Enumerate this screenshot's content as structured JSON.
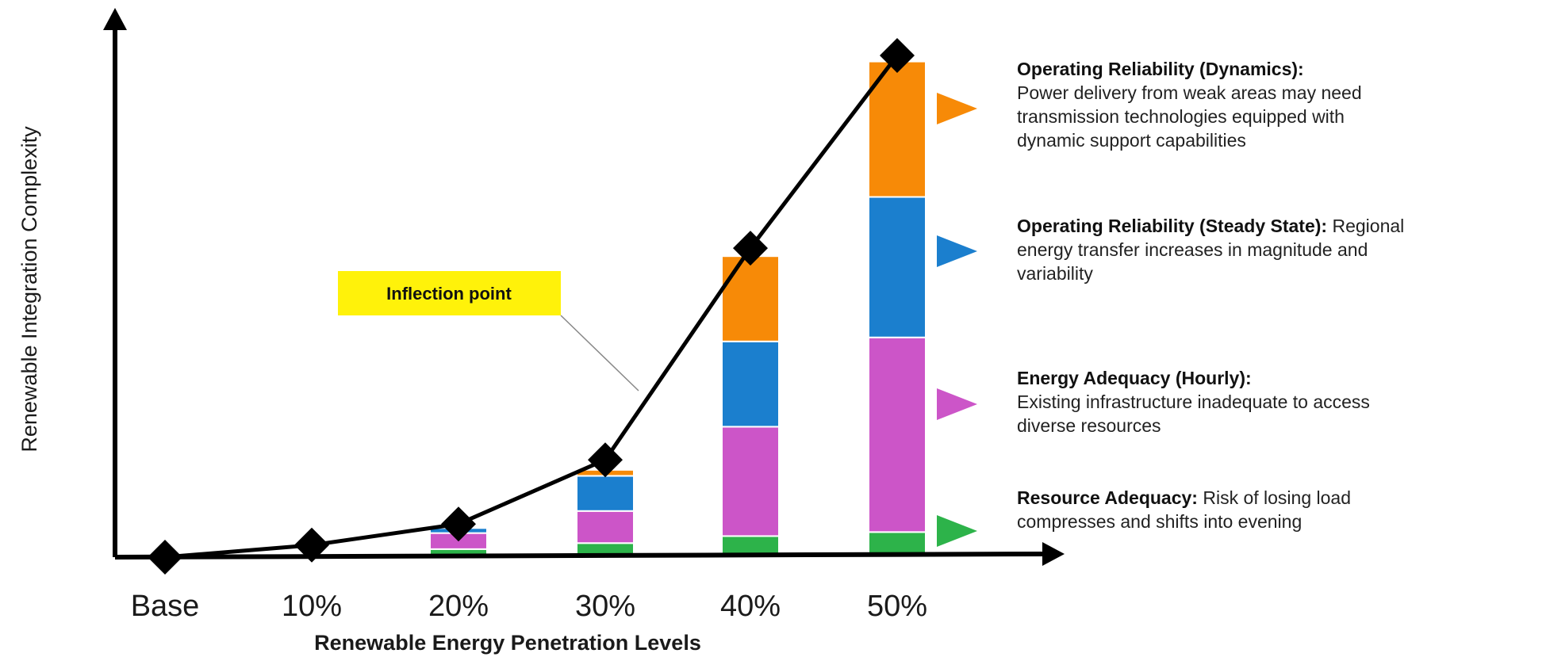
{
  "chart_data": {
    "type": "bar",
    "stacked": true,
    "grid": false,
    "categories": [
      "Base",
      "10%",
      "20%",
      "30%",
      "40%",
      "50%"
    ],
    "xlabel": "Renewable Energy Penetration Levels",
    "ylabel": "Renewable Integration Complexity",
    "ylim": [
      0,
      100
    ],
    "series": [
      {
        "name": "Resource Adequacy",
        "color": "#2db34a",
        "values": [
          0,
          0,
          1.6,
          2.8,
          4.2,
          5.0
        ]
      },
      {
        "name": "Energy Adequacy (Hourly)",
        "color": "#cc55c8",
        "values": [
          0,
          0,
          3.2,
          6.4,
          21.8,
          38.8
        ]
      },
      {
        "name": "Operating Reliability (Steady State)",
        "color": "#1b7fce",
        "values": [
          0,
          0,
          1.0,
          7.0,
          17.0,
          28.0
        ]
      },
      {
        "name": "Operating Reliability (Dynamics)",
        "color": "#f78a07",
        "values": [
          0,
          0,
          0,
          1.2,
          17.0,
          27.0
        ]
      }
    ],
    "line": {
      "color": "#000000",
      "values": [
        0,
        2.4,
        6.6,
        19.4,
        61.6,
        100
      ]
    },
    "callout": {
      "text": "Inflection point",
      "category": "30%",
      "color": "#fff20a"
    },
    "annotations": [
      {
        "series": "Operating Reliability (Dynamics)",
        "title": "Operating Reliability (Dynamics):",
        "lines": [
          "Power delivery from weak areas may need",
          "transmission technologies equipped with",
          "dynamic support capabilities"
        ]
      },
      {
        "series": "Operating Reliability (Steady State)",
        "title": "Operating Reliability (Steady State):",
        "title_tail": " Regional",
        "lines": [
          "energy transfer increases in magnitude and",
          "variability"
        ]
      },
      {
        "series": "Energy Adequacy (Hourly)",
        "title": "Energy Adequacy (Hourly):",
        "lines": [
          "Existing infrastructure inadequate to access",
          "diverse resources"
        ]
      },
      {
        "series": "Resource Adequacy",
        "title": "Resource Adequacy:",
        "title_tail": " Risk of losing load",
        "lines": [
          "compresses and shifts into evening"
        ]
      }
    ]
  }
}
